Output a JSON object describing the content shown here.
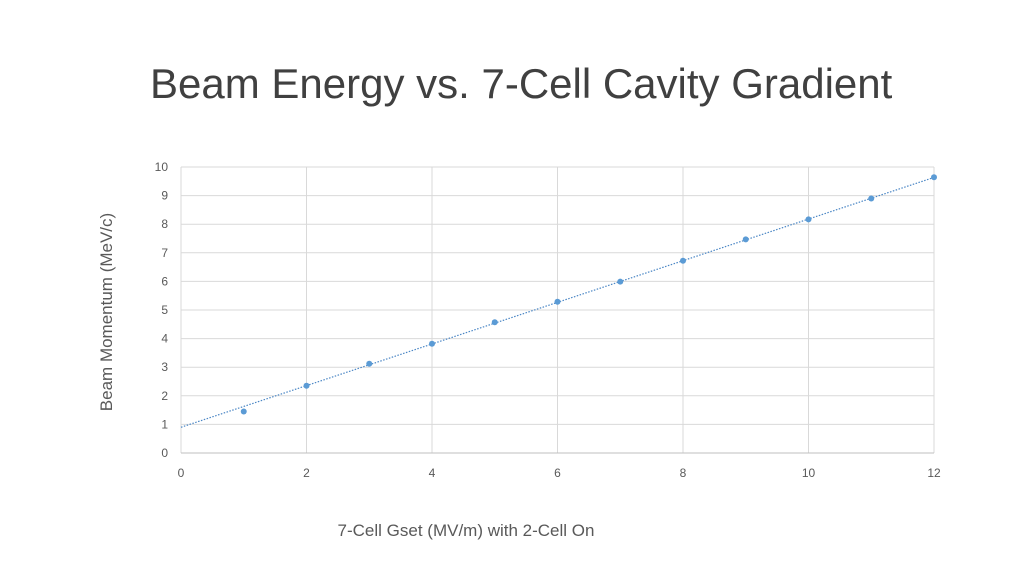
{
  "slide": {
    "title": "Beam Energy vs. 7-Cell Cavity Gradient"
  },
  "colors": {
    "marker": "#5b9bd5",
    "trendline": "#4a86c5",
    "grid": "#d9d9d9",
    "text": "#595959"
  },
  "chart_data": {
    "type": "scatter",
    "title": "",
    "xlabel": "7-Cell Gset (MV/m) with 2-Cell On",
    "ylabel": "Beam Momentum (MeV/c)",
    "xlim": [
      0,
      12
    ],
    "ylim": [
      0,
      10
    ],
    "xticks": [
      "0",
      "2",
      "4",
      "6",
      "8",
      "10",
      "12"
    ],
    "yticks": [
      "0",
      "1",
      "2",
      "3",
      "4",
      "5",
      "6",
      "7",
      "8",
      "9",
      "10"
    ],
    "grid": true,
    "x": [
      1,
      2,
      3,
      4,
      5,
      6,
      7,
      8,
      9,
      10,
      11,
      12
    ],
    "y": [
      1.45,
      2.35,
      3.12,
      3.82,
      4.57,
      5.29,
      5.99,
      6.72,
      7.47,
      8.17,
      8.9,
      9.64
    ],
    "trendline": {
      "type": "linear",
      "intercept": 0.9,
      "slope": 0.728
    }
  }
}
